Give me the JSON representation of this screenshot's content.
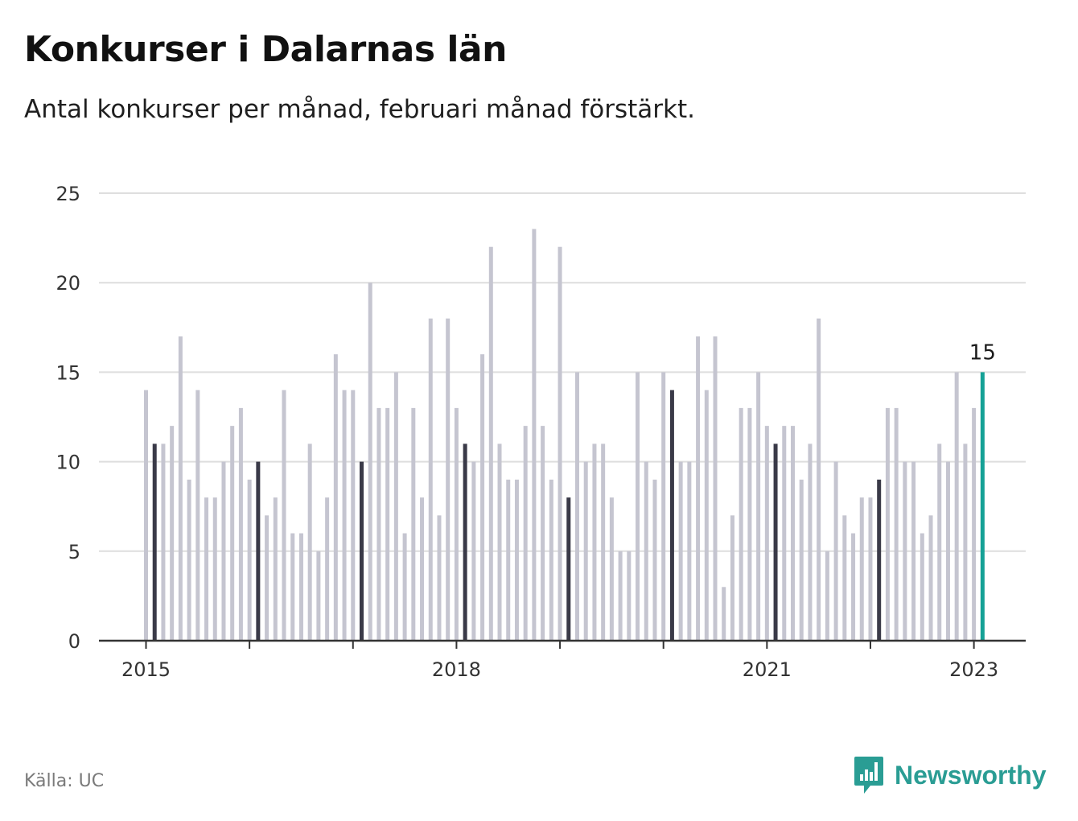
{
  "title": "Konkurser i Dalarnas län",
  "subtitle": "Antal konkurser per månad, februari månad förstärkt.",
  "source": "Källa: UC",
  "brand": "Newsworthy",
  "colors": {
    "bar": "#c5c5d0",
    "february": "#3a3a48",
    "latest": "#15a196",
    "grid": "#dedede",
    "axis": "#333333"
  },
  "chart_data": {
    "type": "bar",
    "title": "Konkurser i Dalarnas län",
    "subtitle": "Antal konkurser per månad, februari månad förstärkt.",
    "xlabel": "",
    "ylabel": "",
    "ylim": [
      0,
      25
    ],
    "yticks": [
      0,
      5,
      10,
      15,
      20,
      25
    ],
    "xticks": [
      "2015",
      "2018",
      "2021",
      "2023"
    ],
    "grid": true,
    "start": "2015-01",
    "end": "2023-02",
    "highlight": "februari",
    "annotations": [
      {
        "month": "2023-02",
        "text": "15"
      }
    ],
    "values": [
      14,
      11,
      11,
      12,
      17,
      9,
      14,
      8,
      8,
      10,
      12,
      13,
      9,
      10,
      7,
      8,
      14,
      6,
      6,
      11,
      5,
      8,
      16,
      14,
      14,
      10,
      20,
      13,
      13,
      15,
      6,
      13,
      8,
      18,
      7,
      18,
      13,
      11,
      10,
      16,
      22,
      11,
      9,
      9,
      12,
      23,
      12,
      9,
      22,
      8,
      15,
      10,
      11,
      11,
      8,
      5,
      5,
      15,
      10,
      9,
      15,
      14,
      10,
      10,
      17,
      14,
      17,
      3,
      7,
      13,
      13,
      15,
      12,
      11,
      12,
      12,
      9,
      11,
      18,
      5,
      10,
      7,
      6,
      8,
      8,
      9,
      13,
      13,
      10,
      10,
      6,
      7,
      11,
      10,
      15,
      11,
      13,
      15
    ]
  }
}
